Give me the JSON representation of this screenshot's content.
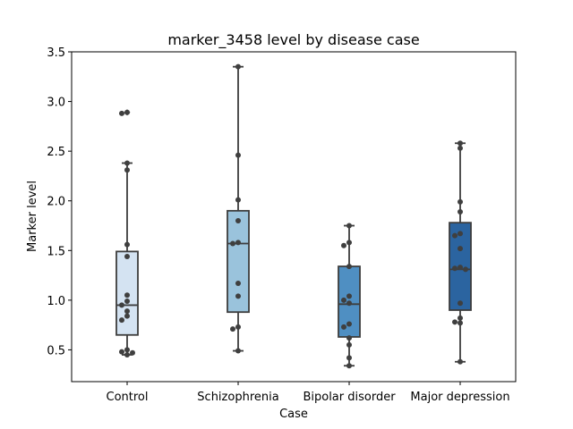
{
  "chart_data": {
    "type": "box",
    "title": "marker_3458 level by disease case",
    "xlabel": "Case",
    "ylabel": "Marker level",
    "ylim": [
      0.18,
      3.5
    ],
    "yticks": [
      "0.5",
      "1.0",
      "1.5",
      "2.0",
      "2.5",
      "3.0",
      "3.5"
    ],
    "grid": false,
    "categories": [
      "Control",
      "Schizophrenia",
      "Bipolar disorder",
      "Major depression"
    ],
    "colors": [
      "#d4e3f2",
      "#9ac3dc",
      "#4f8fc2",
      "#2b64a0"
    ],
    "boxes": [
      {
        "category": "Control",
        "whisker_low": 0.45,
        "q1": 0.65,
        "median": 0.95,
        "q3": 1.49,
        "whisker_high": 2.38,
        "outliers": [
          2.89
        ]
      },
      {
        "category": "Schizophrenia",
        "whisker_low": 0.49,
        "q1": 0.88,
        "median": 1.57,
        "q3": 1.9,
        "whisker_high": 3.35,
        "outliers": []
      },
      {
        "category": "Bipolar disorder",
        "whisker_low": 0.34,
        "q1": 0.63,
        "median": 0.96,
        "q3": 1.34,
        "whisker_high": 1.75,
        "outliers": []
      },
      {
        "category": "Major depression",
        "whisker_low": 0.38,
        "q1": 0.9,
        "median": 1.31,
        "q3": 1.78,
        "whisker_high": 2.58,
        "outliers": []
      }
    ],
    "points": [
      {
        "category": "Control",
        "values": [
          2.89,
          2.88,
          2.38,
          2.31,
          1.56,
          1.44,
          1.05,
          0.99,
          0.95,
          0.89,
          0.84,
          0.8,
          0.5,
          0.48,
          0.47,
          0.45
        ]
      },
      {
        "category": "Schizophrenia",
        "values": [
          3.35,
          2.46,
          2.01,
          1.8,
          1.58,
          1.57,
          1.17,
          1.04,
          0.73,
          0.71,
          0.49
        ]
      },
      {
        "category": "Bipolar disorder",
        "values": [
          1.75,
          1.58,
          1.55,
          1.34,
          1.04,
          1.0,
          0.97,
          0.76,
          0.73,
          0.62,
          0.55,
          0.42,
          0.34
        ]
      },
      {
        "category": "Major depression",
        "values": [
          2.58,
          2.53,
          1.99,
          1.89,
          1.67,
          1.65,
          1.52,
          1.33,
          1.32,
          1.31,
          0.97,
          0.82,
          0.78,
          0.77,
          0.38
        ]
      }
    ]
  }
}
